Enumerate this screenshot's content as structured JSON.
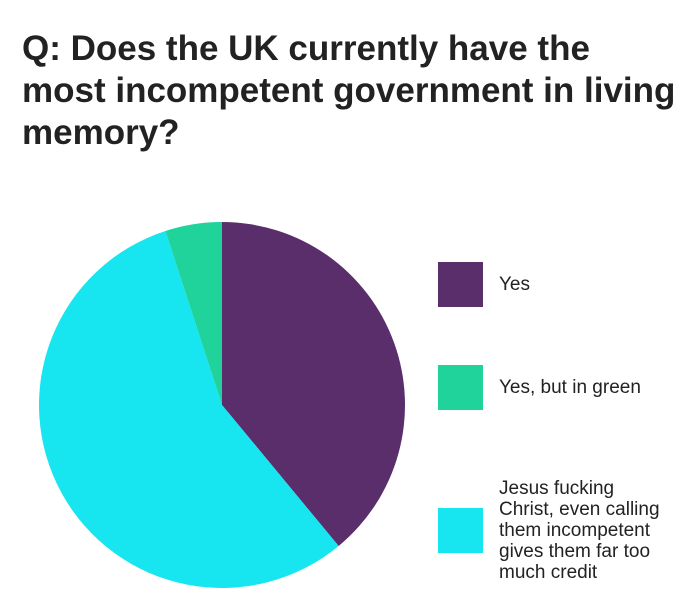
{
  "chart_data": {
    "type": "pie",
    "title": "Q: Does the UK currently have the most incompetent government in living memory?",
    "categories": [
      "Yes",
      "Yes, but in green",
      "Jesus fucking Christ, even calling them incompetent gives them far too much credit"
    ],
    "values": [
      39,
      5,
      56
    ],
    "colors": [
      "#5a2d6b",
      "#1fd39b",
      "#17e5f0"
    ]
  }
}
